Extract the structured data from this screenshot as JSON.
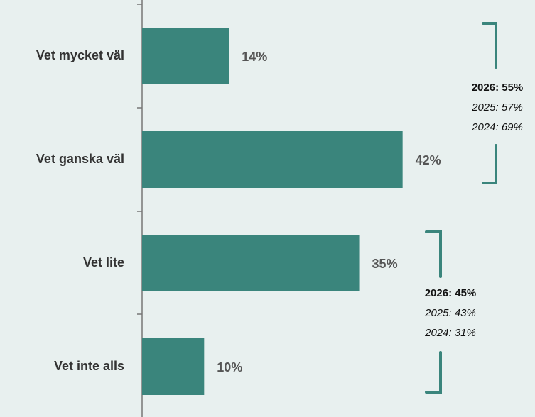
{
  "chart_data": {
    "type": "bar",
    "orientation": "horizontal",
    "categories": [
      "Vet mycket väl",
      "Vet ganska väl",
      "Vet lite",
      "Vet inte alls"
    ],
    "values": [
      14,
      42,
      35,
      10
    ],
    "value_labels": [
      "14%",
      "42%",
      "35%",
      "10%"
    ],
    "color": "#3a857c",
    "annotations": [
      {
        "lines": [
          "2026: 55%",
          "2025: 57%",
          "2024: 69%"
        ]
      },
      {
        "lines": [
          "2026: 45%",
          "2025: 43%",
          "2024: 31%"
        ]
      }
    ]
  }
}
